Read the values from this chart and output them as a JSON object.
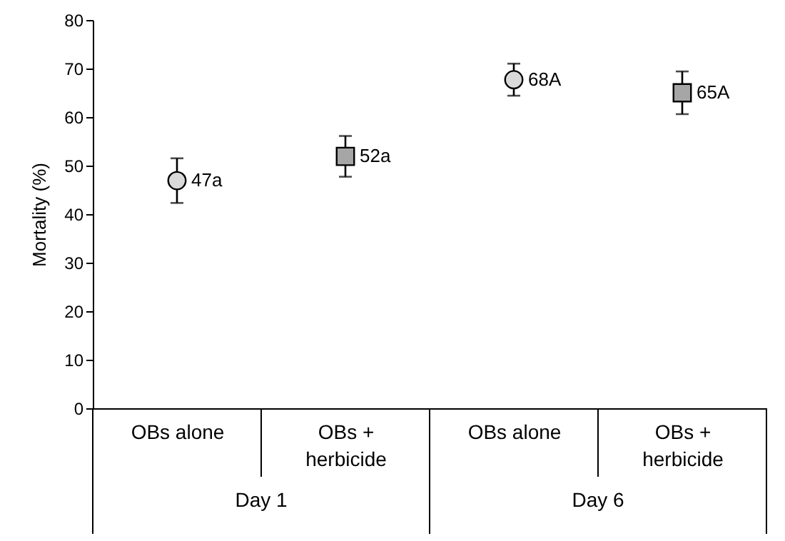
{
  "chart_data": {
    "type": "scatter",
    "ylabel": "Mortality (%)",
    "categories": [
      "OBs alone",
      "OBs + herbicide",
      "OBs alone",
      "OBs + herbicide"
    ],
    "annotations": [
      "Day 1",
      "Day 6"
    ],
    "series": [
      {
        "color": "#d9d9d9",
        "marker": "circle",
        "values": [
          46.9,
          null,
          67.7,
          null
        ],
        "errors": [
          4.6,
          null,
          3.3,
          null
        ],
        "value_labels": [
          "47a",
          null,
          "68A",
          null
        ]
      },
      {
        "color": "#a6a6a6",
        "marker": "square",
        "values": [
          null,
          51.9,
          null,
          65.0
        ],
        "errors": [
          null,
          4.2,
          null,
          4.4
        ],
        "value_labels": [
          null,
          "52a",
          null,
          "65A"
        ]
      }
    ],
    "ylim": [
      0,
      80
    ],
    "yticks": [
      0,
      10,
      20,
      30,
      40,
      50,
      60,
      70,
      80
    ],
    "grid": false
  }
}
